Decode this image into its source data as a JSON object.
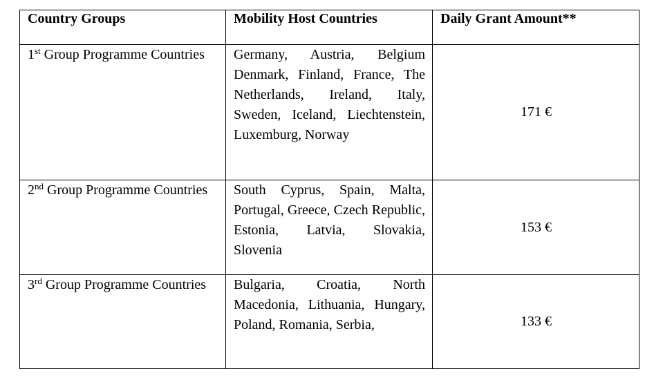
{
  "table": {
    "headers": [
      "Country Groups",
      "Mobility Host Countries",
      "Daily Grant Amount**"
    ],
    "rows": [
      {
        "number": "1",
        "suffix": "st",
        "group": "Group Programme Countries",
        "countries": "Germany, Austria, Belgium Denmark, Finland, France, The Netherlands, Ireland, Italy, Sweden, Iceland, Liechtenstein, Luxemburg, Norway",
        "amount": "171 €"
      },
      {
        "number": "2",
        "suffix": "nd",
        "group": "Group Programme Countries",
        "countries": "South Cyprus, Spain, Malta, Portugal, Greece, Czech Republic, Estonia, Latvia, Slovakia, Slovenia",
        "amount": "153 €"
      },
      {
        "number": "3",
        "suffix": "rd",
        "group": "Group Programme Countries",
        "countries": "Bulgaria, Croatia, North Macedonia, Lithuania, Hungary, Poland, Romania, Serbia,",
        "amount": "133 €"
      }
    ]
  }
}
